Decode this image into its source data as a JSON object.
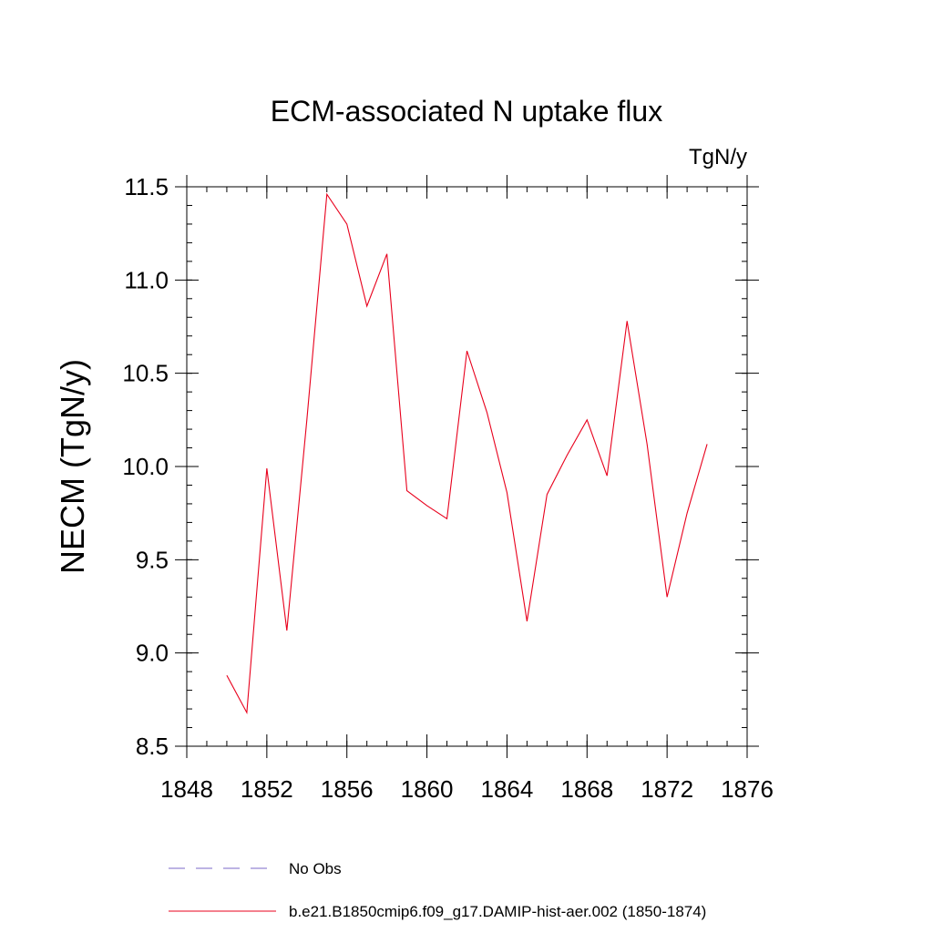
{
  "chart_data": {
    "type": "line",
    "title": "ECM-associated N uptake flux",
    "units_label": "TgN/y",
    "ylabel": "NECM  (TgN/y)",
    "xlabel": "",
    "xlim": [
      1848,
      1876
    ],
    "ylim": [
      8.5,
      11.5
    ],
    "xticks": [
      1848,
      1852,
      1856,
      1860,
      1864,
      1868,
      1872,
      1876
    ],
    "yticks": [
      8.5,
      9.0,
      9.5,
      10.0,
      10.5,
      11.0,
      11.5
    ],
    "ytick_labels": [
      "8.5",
      "9.0",
      "9.5",
      "10.0",
      "10.5",
      "11.0",
      "11.5"
    ],
    "x_minor_step": 1,
    "y_minor_step": 0.1,
    "grid": false,
    "legend_placement": "bottom",
    "series": [
      {
        "name": "No Obs",
        "color": "#7b68c8",
        "dash": "dashed",
        "x": [],
        "values": []
      },
      {
        "name": "b.e21.B1850cmip6.f09_g17.DAMIP-hist-aer.002 (1850-1874)",
        "color": "#e8001c",
        "dash": "solid",
        "x": [
          1850,
          1851,
          1852,
          1853,
          1854,
          1855,
          1856,
          1857,
          1858,
          1859,
          1860,
          1861,
          1862,
          1863,
          1864,
          1865,
          1866,
          1867,
          1868,
          1869,
          1870,
          1871,
          1872,
          1873,
          1874
        ],
        "values": [
          8.88,
          8.68,
          9.99,
          9.12,
          10.25,
          11.46,
          11.3,
          10.86,
          11.14,
          9.87,
          9.79,
          9.72,
          10.62,
          10.29,
          9.86,
          9.17,
          9.85,
          10.06,
          10.25,
          9.95,
          10.78,
          10.12,
          9.3,
          9.75,
          10.12
        ]
      }
    ]
  }
}
